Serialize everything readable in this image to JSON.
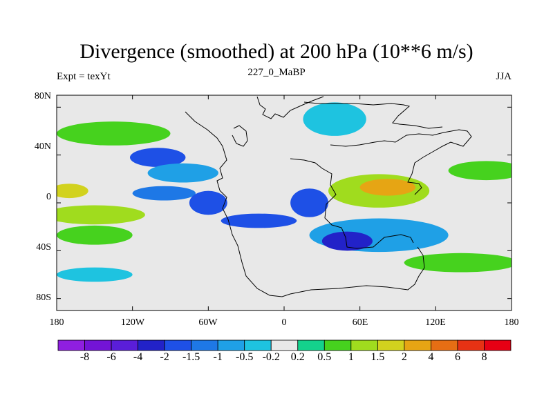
{
  "header": {
    "title": "Divergence (smoothed) at 200 hPa (10**6 m/s)",
    "left": "Expt = texYt",
    "center": "227_0_MaBP",
    "right": "JJA"
  },
  "axes": {
    "y_ticks": [
      "80N",
      "40N",
      "0",
      "40S",
      "80S"
    ],
    "x_ticks": [
      "180",
      "120W",
      "60W",
      "0",
      "60E",
      "120E",
      "180"
    ]
  },
  "colorbar": {
    "labels": [
      "-8",
      "-6",
      "-4",
      "-2",
      "-1.5",
      "-1",
      "-0.5",
      "-0.2",
      "0.2",
      "0.5",
      "1",
      "1.5",
      "2",
      "4",
      "6",
      "8"
    ],
    "colors": [
      "#8f1fe0",
      "#7314d6",
      "#5a1ed9",
      "#2222c8",
      "#1e50e6",
      "#1e78e6",
      "#1fa0e6",
      "#1ec3e0",
      "#e8e8e8",
      "#14d28c",
      "#46d21e",
      "#a0dc1e",
      "#d2d21e",
      "#e6a514",
      "#e66e14",
      "#e63214",
      "#e60014"
    ]
  },
  "map": {
    "background": "#e8e8e8",
    "features": [
      {
        "lon": -100,
        "lat": 38,
        "rx": 22,
        "ry": 8,
        "value": -2
      },
      {
        "lon": -80,
        "lat": 25,
        "rx": 28,
        "ry": 8,
        "value": -1
      },
      {
        "lon": -95,
        "lat": 8,
        "rx": 25,
        "ry": 6,
        "value": -1.5
      },
      {
        "lon": -60,
        "lat": 0,
        "rx": 15,
        "ry": 10,
        "value": -2
      },
      {
        "lon": 20,
        "lat": 0,
        "rx": 15,
        "ry": 12,
        "value": -2
      },
      {
        "lon": -20,
        "lat": -15,
        "rx": 30,
        "ry": 6,
        "value": -2
      },
      {
        "lon": 75,
        "lat": -27,
        "rx": 55,
        "ry": 14,
        "value": -1
      },
      {
        "lon": 50,
        "lat": -32,
        "rx": 20,
        "ry": 8,
        "value": -4
      },
      {
        "lon": 75,
        "lat": 10,
        "rx": 40,
        "ry": 14,
        "value": 1
      },
      {
        "lon": 82,
        "lat": 13,
        "rx": 22,
        "ry": 7,
        "value": 2
      },
      {
        "lon": -150,
        "lat": -10,
        "rx": 40,
        "ry": 8,
        "value": 1
      },
      {
        "lon": -150,
        "lat": -27,
        "rx": 30,
        "ry": 8,
        "value": 0.5
      },
      {
        "lon": -135,
        "lat": 58,
        "rx": 45,
        "ry": 10,
        "value": 0.5
      },
      {
        "lon": 40,
        "lat": 70,
        "rx": 25,
        "ry": 14,
        "value": -0.5
      },
      {
        "lon": 160,
        "lat": 27,
        "rx": 30,
        "ry": 8,
        "value": 0.5
      },
      {
        "lon": -170,
        "lat": 10,
        "rx": 15,
        "ry": 6,
        "value": 1.5
      },
      {
        "lon": -150,
        "lat": -60,
        "rx": 30,
        "ry": 6,
        "value": -0.5
      },
      {
        "lon": 140,
        "lat": -50,
        "rx": 45,
        "ry": 8,
        "value": 0.5
      }
    ]
  }
}
